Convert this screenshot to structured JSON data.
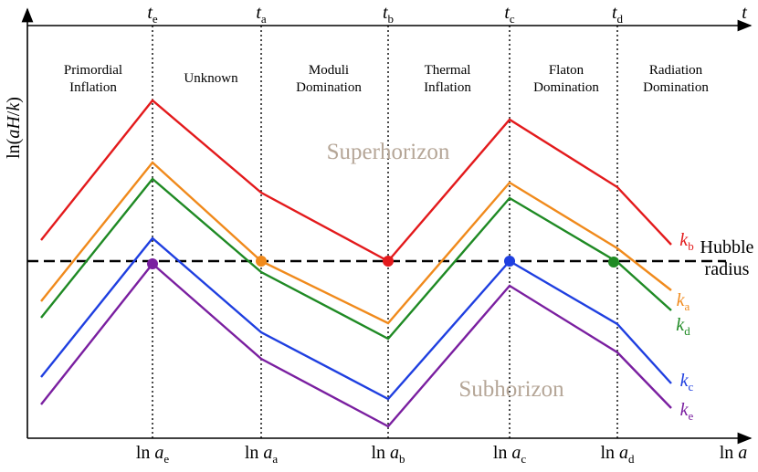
{
  "top_axis": {
    "ticks": [
      {
        "main": "t",
        "sub": "e"
      },
      {
        "main": "t",
        "sub": "a"
      },
      {
        "main": "t",
        "sub": "b"
      },
      {
        "main": "t",
        "sub": "c"
      },
      {
        "main": "t",
        "sub": "d"
      }
    ],
    "label": "t"
  },
  "bottom_axis": {
    "prefix": "ln",
    "ticks": [
      {
        "var": "a",
        "sub": "e"
      },
      {
        "var": "a",
        "sub": "a"
      },
      {
        "var": "a",
        "sub": "b"
      },
      {
        "var": "a",
        "sub": "c"
      },
      {
        "var": "a",
        "sub": "d"
      }
    ],
    "label": {
      "prefix": "ln",
      "var": "a"
    }
  },
  "y_axis": {
    "label": [
      "ln(",
      "aH",
      "/",
      "k",
      ")"
    ]
  },
  "eras": [
    [
      "Primordial",
      "Inflation"
    ],
    [
      "Unknown"
    ],
    [
      "Moduli",
      "Domination"
    ],
    [
      "Thermal",
      "Inflation"
    ],
    [
      "Flaton",
      "Domination"
    ],
    [
      "Radiation",
      "Domination"
    ]
  ],
  "regions": {
    "above": "Superhorizon",
    "below": "Subhorizon"
  },
  "hubble": [
    "Hubble",
    "radius"
  ],
  "modes": [
    {
      "main": "k",
      "sub": "b"
    },
    {
      "main": "k",
      "sub": "a"
    },
    {
      "main": "k",
      "sub": "d"
    },
    {
      "main": "k",
      "sub": "c"
    },
    {
      "main": "k",
      "sub": "e"
    }
  ]
}
